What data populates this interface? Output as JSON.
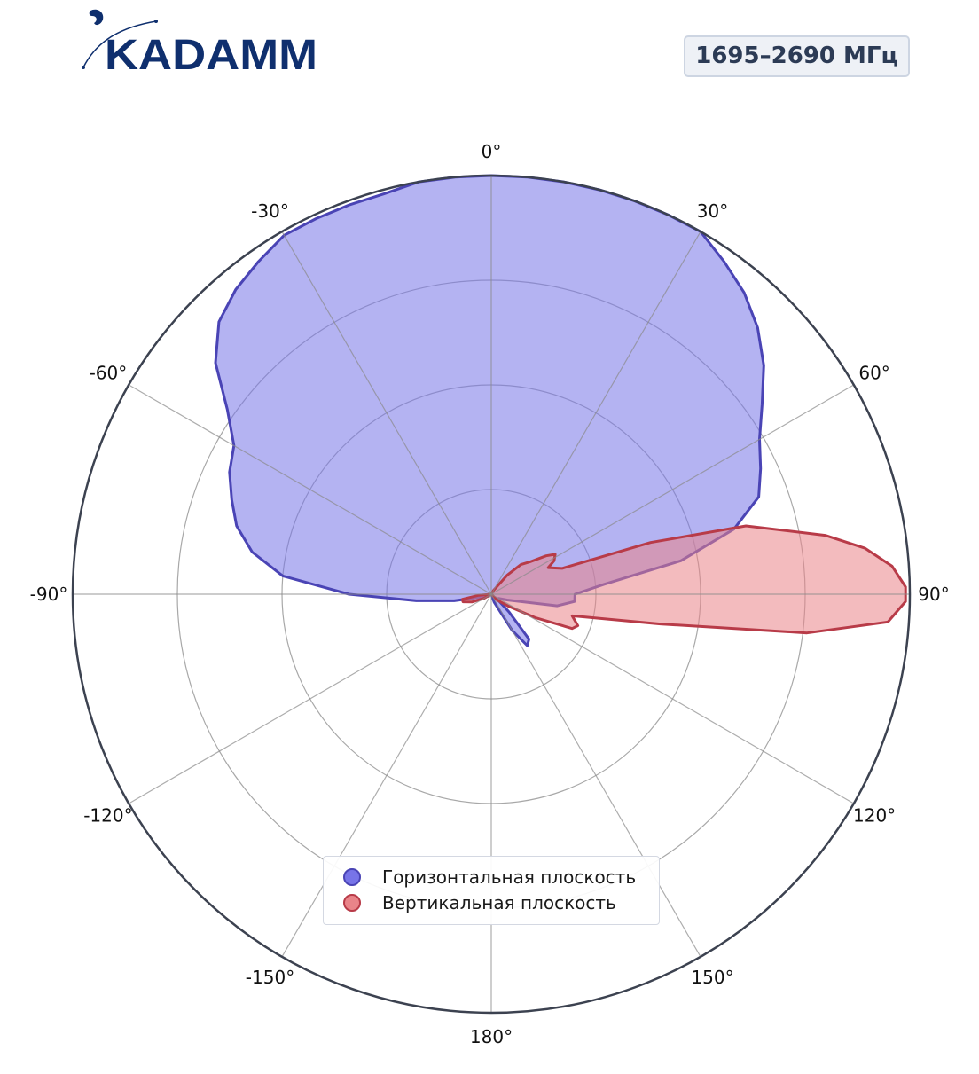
{
  "brand": {
    "name": "KADAMM",
    "color": "#0f2f6e"
  },
  "band_label": "1695–2690 МГц",
  "legend": {
    "horizontal_label": "Горизонтальная плоскость",
    "vertical_label": "Вертикальная плоскость"
  },
  "chart_data": {
    "type": "polar",
    "angular_ticks": [
      "0°",
      "30°",
      "60°",
      "90°",
      "120°",
      "150°",
      "180°",
      "-150°",
      "-120°",
      "-90°",
      "-60°",
      "-30°"
    ],
    "angular_direction": "clockwise",
    "zero_location": "top",
    "radial_range": [
      0,
      1
    ],
    "radial_gridlines": [
      0.25,
      0.5,
      0.75
    ],
    "grid": true,
    "legend_position": "lower center",
    "series": [
      {
        "name": "Горизонтальная плоскость",
        "color": "#4a44b5",
        "fill": "#7774e8",
        "points": [
          [
            -180,
            0.0
          ],
          [
            -150,
            0.0
          ],
          [
            -120,
            0.01
          ],
          [
            -100,
            0.09
          ],
          [
            -95,
            0.18
          ],
          [
            -90,
            0.34
          ],
          [
            -85,
            0.5
          ],
          [
            -80,
            0.58
          ],
          [
            -75,
            0.63
          ],
          [
            -70,
            0.66
          ],
          [
            -65,
            0.69
          ],
          [
            -60,
            0.71
          ],
          [
            -55,
            0.77
          ],
          [
            -50,
            0.86
          ],
          [
            -45,
            0.92
          ],
          [
            -40,
            0.95
          ],
          [
            -35,
            0.97
          ],
          [
            -30,
            0.99
          ],
          [
            -25,
            0.99
          ],
          [
            -20,
            0.99
          ],
          [
            -15,
            0.99
          ],
          [
            -10,
            1.0
          ],
          [
            -5,
            1.0
          ],
          [
            0,
            1.0
          ],
          [
            5,
            1.0
          ],
          [
            10,
            1.0
          ],
          [
            15,
            1.0
          ],
          [
            20,
            1.0
          ],
          [
            25,
            1.0
          ],
          [
            30,
            1.0
          ],
          [
            35,
            0.97
          ],
          [
            40,
            0.94
          ],
          [
            45,
            0.9
          ],
          [
            50,
            0.85
          ],
          [
            55,
            0.79
          ],
          [
            60,
            0.74
          ],
          [
            65,
            0.71
          ],
          [
            70,
            0.68
          ],
          [
            75,
            0.6
          ],
          [
            80,
            0.46
          ],
          [
            85,
            0.27
          ],
          [
            90,
            0.2
          ],
          [
            95,
            0.2
          ],
          [
            100,
            0.16
          ],
          [
            110,
            0.04
          ],
          [
            120,
            0.02
          ],
          [
            130,
            0.02
          ],
          [
            135,
            0.06
          ],
          [
            140,
            0.14
          ],
          [
            145,
            0.15
          ],
          [
            150,
            0.1
          ],
          [
            160,
            0.02
          ],
          [
            180,
            0.0
          ]
        ]
      },
      {
        "name": "Вертикальная плоскость",
        "color": "#b83b48",
        "fill": "#e98489",
        "points": [
          [
            -180,
            0.0
          ],
          [
            -150,
            0.0
          ],
          [
            -120,
            0.02
          ],
          [
            -112,
            0.05
          ],
          [
            -105,
            0.07
          ],
          [
            -100,
            0.07
          ],
          [
            -95,
            0.03
          ],
          [
            -80,
            0.0
          ],
          [
            -40,
            0.0
          ],
          [
            0,
            0.0
          ],
          [
            30,
            0.01
          ],
          [
            40,
            0.06
          ],
          [
            45,
            0.1
          ],
          [
            50,
            0.12
          ],
          [
            55,
            0.16
          ],
          [
            58,
            0.18
          ],
          [
            62,
            0.17
          ],
          [
            65,
            0.15
          ],
          [
            70,
            0.18
          ],
          [
            72,
            0.4
          ],
          [
            75,
            0.63
          ],
          [
            80,
            0.81
          ],
          [
            83,
            0.9
          ],
          [
            86,
            0.96
          ],
          [
            89,
            0.99
          ],
          [
            91,
            0.99
          ],
          [
            94,
            0.95
          ],
          [
            97,
            0.76
          ],
          [
            100,
            0.41
          ],
          [
            105,
            0.2
          ],
          [
            110,
            0.22
          ],
          [
            113,
            0.21
          ],
          [
            118,
            0.12
          ],
          [
            125,
            0.05
          ],
          [
            135,
            0.02
          ],
          [
            150,
            0.0
          ],
          [
            180,
            0.0
          ]
        ]
      }
    ]
  }
}
